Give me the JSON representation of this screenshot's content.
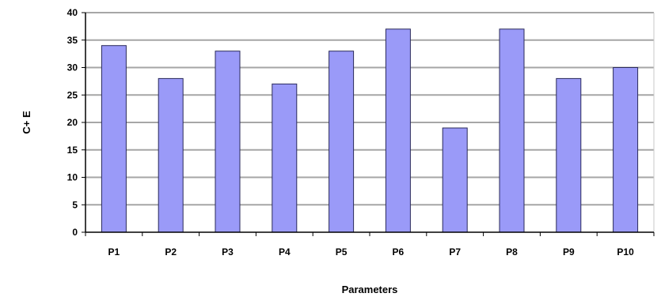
{
  "chart_data": {
    "type": "bar",
    "title": "",
    "xlabel": "Parameters",
    "ylabel": "C+ E",
    "categories": [
      "P1",
      "P2",
      "P3",
      "P4",
      "P5",
      "P6",
      "P7",
      "P8",
      "P9",
      "P10"
    ],
    "values": [
      34,
      28,
      33,
      27,
      33,
      37,
      19,
      37,
      28,
      30
    ],
    "ylim": [
      0,
      40
    ],
    "yticks": [
      0,
      5,
      10,
      15,
      20,
      25,
      30,
      35,
      40
    ],
    "grid": true,
    "legend": "none",
    "colors": {
      "bar_fill": "#9a9af8",
      "bar_stroke": "#2a2a5a",
      "grid": "#a6a6a6",
      "axis": "#000000"
    }
  }
}
